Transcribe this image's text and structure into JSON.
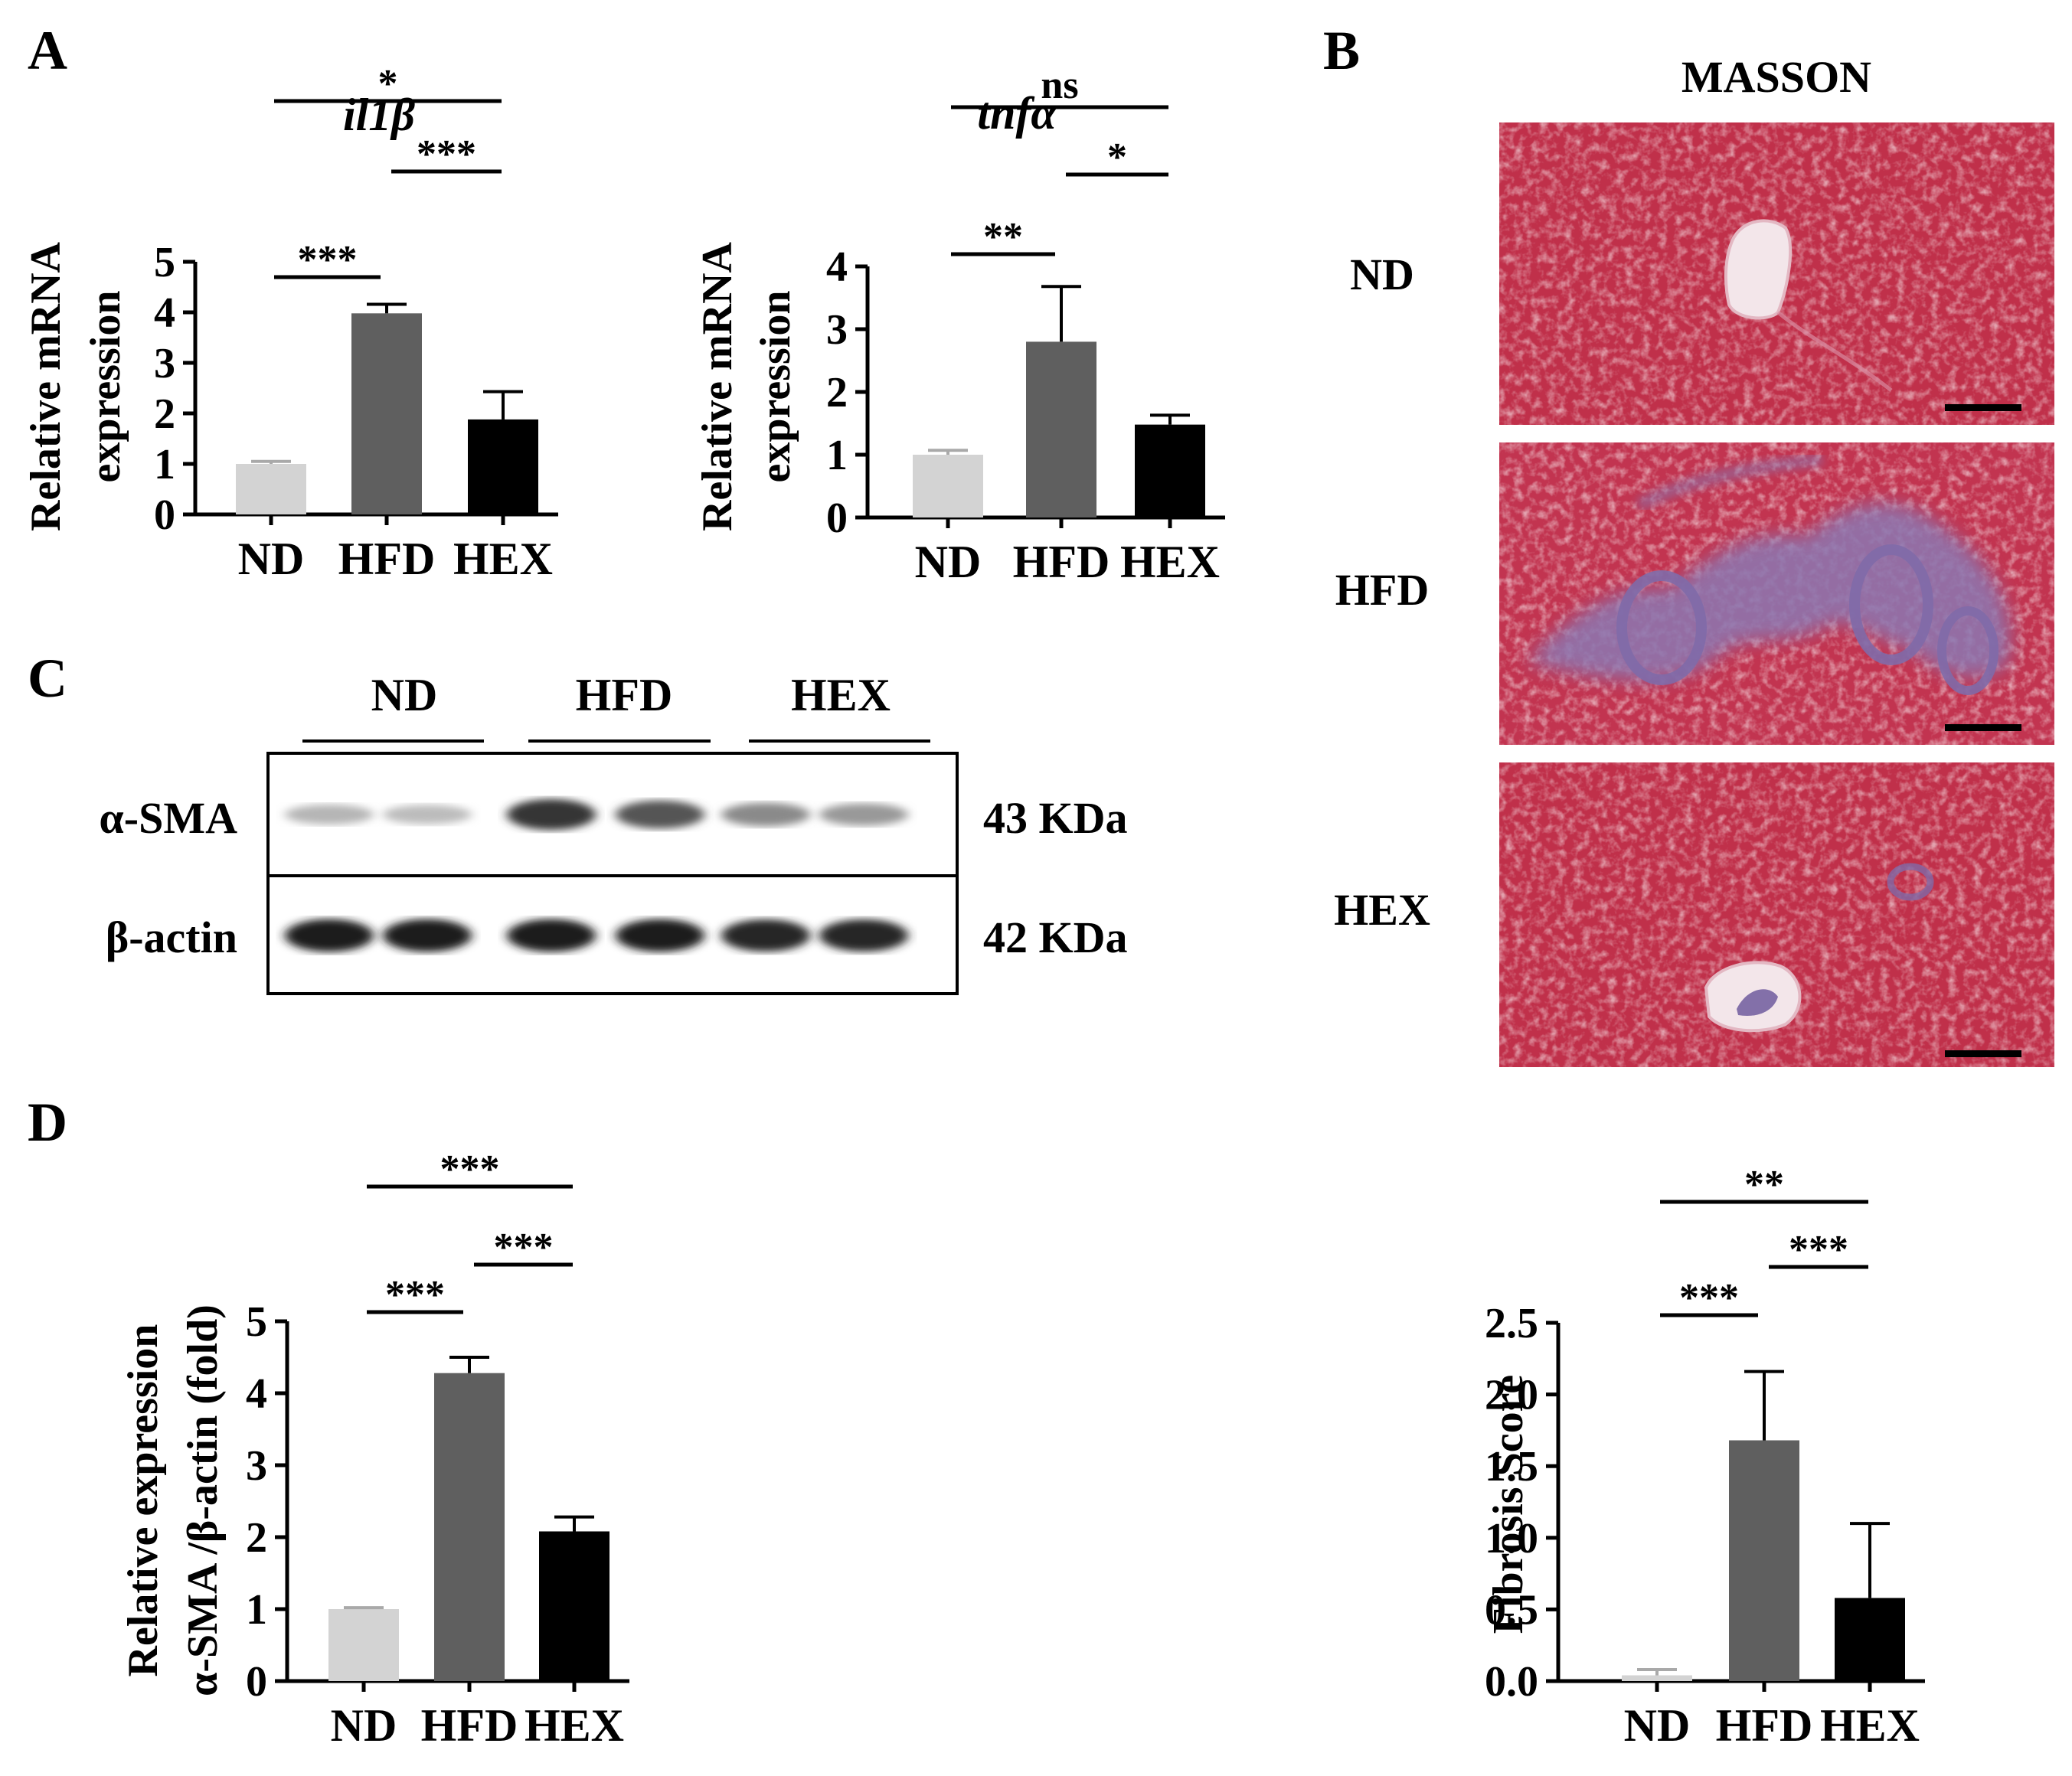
{
  "panels": {
    "A": "A",
    "B": "B",
    "C": "C",
    "D": "D"
  },
  "colors": {
    "ND": "#d3d3d3",
    "HFD": "#5f5f5f",
    "HEX": "#000000"
  },
  "chart_data": [
    {
      "id": "il1b",
      "type": "bar",
      "title": "il1β",
      "ylabel": [
        "Relative mRNA",
        "expression"
      ],
      "categories": [
        "ND",
        "HFD",
        "HEX"
      ],
      "values": [
        1.0,
        3.98,
        1.88
      ],
      "errors": [
        0.05,
        0.18,
        0.55
      ],
      "ylim": [
        0,
        5
      ],
      "yticks": [
        "0",
        "1",
        "2",
        "3",
        "4",
        "5"
      ],
      "comparisons": [
        {
          "from": 0,
          "to": 1,
          "label": "***"
        },
        {
          "from": 1,
          "to": 2,
          "label": "***"
        },
        {
          "from": 0,
          "to": 2,
          "label": "*"
        }
      ]
    },
    {
      "id": "tnfa",
      "type": "bar",
      "title": "tnfα",
      "ylabel": [
        "Relative mRNA",
        "expression"
      ],
      "categories": [
        "ND",
        "HFD",
        "HEX"
      ],
      "values": [
        1.0,
        2.8,
        1.48
      ],
      "errors": [
        0.07,
        0.88,
        0.15
      ],
      "ylim": [
        0,
        4
      ],
      "yticks": [
        "0",
        "1",
        "2",
        "3",
        "4"
      ],
      "comparisons": [
        {
          "from": 0,
          "to": 1,
          "label": "**"
        },
        {
          "from": 1,
          "to": 2,
          "label": "*"
        },
        {
          "from": 0,
          "to": 2,
          "label": "ns"
        }
      ]
    },
    {
      "id": "sma",
      "type": "bar",
      "title": "",
      "ylabel": [
        "Relative expression",
        "α-SMA /β-actin (fold)"
      ],
      "categories": [
        "ND",
        "HFD",
        "HEX"
      ],
      "values": [
        1.0,
        4.28,
        2.08
      ],
      "errors": [
        0.02,
        0.22,
        0.2
      ],
      "ylim": [
        0,
        5
      ],
      "yticks": [
        "0",
        "1",
        "2",
        "3",
        "4",
        "5"
      ],
      "comparisons": [
        {
          "from": 0,
          "to": 1,
          "label": "***"
        },
        {
          "from": 1,
          "to": 2,
          "label": "***"
        },
        {
          "from": 0,
          "to": 2,
          "label": "***"
        }
      ]
    },
    {
      "id": "fibrosis",
      "type": "bar",
      "title": "",
      "ylabel": [
        "Fibrosis Score"
      ],
      "categories": [
        "ND",
        "HFD",
        "HEX"
      ],
      "values": [
        0.04,
        1.68,
        0.58
      ],
      "errors": [
        0.04,
        0.48,
        0.52
      ],
      "ylim": [
        0,
        2.5
      ],
      "yticks": [
        "0.0",
        "0.5",
        "1.0",
        "1.5",
        "2.0",
        "2.5"
      ],
      "comparisons": [
        {
          "from": 0,
          "to": 1,
          "label": "***"
        },
        {
          "from": 1,
          "to": 2,
          "label": "***"
        },
        {
          "from": 0,
          "to": 2,
          "label": "**"
        }
      ]
    }
  ],
  "western_blot": {
    "groups": [
      "ND",
      "HFD",
      "HEX"
    ],
    "rows": [
      {
        "protein": "α-SMA",
        "size": "43 KDa",
        "intensities": [
          0.25,
          0.22,
          0.85,
          0.7,
          0.45,
          0.38
        ]
      },
      {
        "protein": "β-actin",
        "size": "42 KDa",
        "intensities": [
          0.95,
          0.95,
          0.95,
          0.95,
          0.92,
          0.92
        ]
      }
    ]
  },
  "histology": {
    "stain": "MASSON",
    "rows": [
      "ND",
      "HFD",
      "HEX"
    ]
  }
}
